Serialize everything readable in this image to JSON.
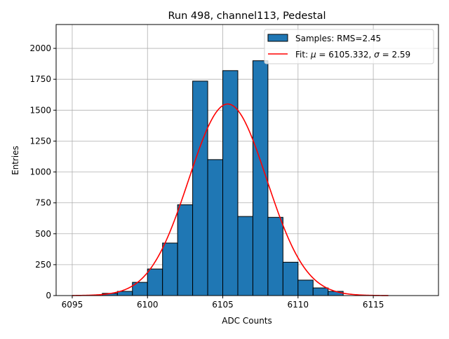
{
  "chart_data": {
    "type": "bar",
    "title": "Run 498, channel113, Pedestal",
    "xlabel": "ADC Counts",
    "ylabel": "Entries",
    "xlim": [
      6093.93,
      6119.33
    ],
    "ylim": [
      0,
      2193
    ],
    "xticks": [
      6095,
      6100,
      6105,
      6110,
      6115
    ],
    "yticks": [
      0,
      250,
      500,
      750,
      1000,
      1250,
      1500,
      1750,
      2000
    ],
    "grid": true,
    "bin_edges": [
      6097,
      6098,
      6099,
      6100,
      6101,
      6102,
      6103,
      6104,
      6105,
      6106,
      6107,
      6108,
      6109,
      6110,
      6111,
      6112,
      6113
    ],
    "values": [
      18,
      34,
      107,
      215,
      425,
      735,
      1735,
      1100,
      1820,
      640,
      1900,
      633,
      270,
      125,
      62,
      34
    ],
    "fit": {
      "mu": 6105.332,
      "sigma": 2.59,
      "amplitude": 1550,
      "range": [
        6095,
        6116
      ]
    },
    "legend": {
      "placement": "top-right",
      "entries": [
        {
          "label": "Samples: RMS=2.45",
          "color": "#1f77b4"
        },
        {
          "label_prefix": "Fit: ",
          "mu_symbol": "μ",
          "mu_text": " = 6105.332, ",
          "sigma_symbol": "σ",
          "sigma_text": " = 2.59",
          "color": "#ff0000"
        }
      ]
    },
    "colors": {
      "bar": "#1f77b4",
      "fit": "#ff0000",
      "grid": "#b0b0b0"
    }
  }
}
